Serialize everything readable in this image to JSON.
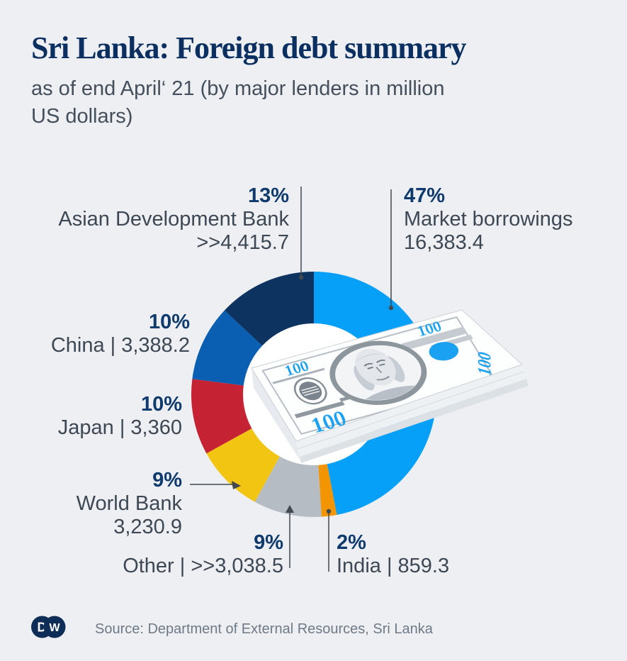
{
  "header": {
    "title": "Sri Lanka: Foreign debt summary",
    "subtitle": "as of end April‘ 21 (by major lenders in million US dollars)"
  },
  "chart_data": {
    "type": "pie",
    "subtype": "donut",
    "title": "Sri Lanka: Foreign debt summary",
    "subtitle": "as of end April‘ 21 (by major lenders in million US dollars)",
    "unit": "million US dollars",
    "direction": "clockwise",
    "start_angle_deg": 0,
    "donut_hole_color": "#ffffff",
    "center_illustration": "stack of US 100-dollar bills",
    "segments": [
      {
        "id": "market-borrowings",
        "label": "Market borrowings",
        "percent": 47,
        "value": 16383.4,
        "value_display": "16,383.4",
        "color": "#07a0f8"
      },
      {
        "id": "india",
        "label": "India",
        "percent": 2,
        "value": 859.3,
        "value_display": "859.3",
        "color": "#f39500"
      },
      {
        "id": "other",
        "label": "Other",
        "percent": 9,
        "value": 3038.5,
        "value_display": ">>3,038.5",
        "color": "#b5bcc4"
      },
      {
        "id": "world-bank",
        "label": "World Bank",
        "percent": 9,
        "value": 3230.9,
        "value_display": "3,230.9",
        "color": "#f3c513"
      },
      {
        "id": "japan",
        "label": "Japan",
        "percent": 10,
        "value": 3360,
        "value_display": "3,360",
        "color": "#c52233"
      },
      {
        "id": "china",
        "label": "China",
        "percent": 10,
        "value": 3388.2,
        "value_display": "3,388.2",
        "color": "#0a5fb2"
      },
      {
        "id": "asian-development-bank",
        "label": "Asian Development Bank",
        "percent": 13,
        "value": 4415.7,
        "value_display": ">>4,415.7",
        "color": "#0d3361"
      }
    ]
  },
  "callouts": {
    "adb": {
      "pct": "13%",
      "name": "Asian Development Bank",
      "value": ">>4,415.7"
    },
    "market": {
      "pct": "47%",
      "name": "Market borrowings",
      "value": "16,383.4"
    },
    "china": {
      "pct": "10%",
      "name": "China | 3,388.2"
    },
    "japan": {
      "pct": "10%",
      "name": "Japan | 3,360"
    },
    "worldbank": {
      "pct": "9%",
      "name": "World Bank",
      "value": "3,230.9"
    },
    "other": {
      "pct": "9%",
      "name": "Other | >>3,038.5"
    },
    "india": {
      "pct": "2%",
      "name": "India | 859.3"
    }
  },
  "money": {
    "denomination": "100"
  },
  "footer": {
    "logo_d": "D",
    "logo_w": "W",
    "source": "Source: Department of External Resources, Sri Lanka"
  }
}
